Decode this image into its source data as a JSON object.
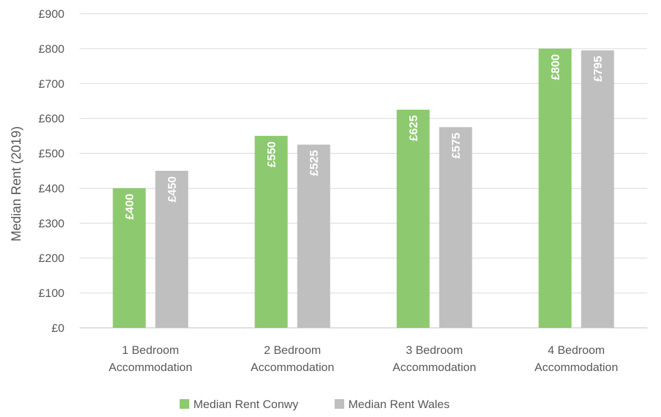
{
  "chart_data": {
    "type": "bar",
    "title": "",
    "xlabel": "",
    "ylabel": "Median Rent (2019)",
    "ylim": [
      0,
      900
    ],
    "y_ticks": [
      "£0",
      "£100",
      "£200",
      "£300",
      "£400",
      "£500",
      "£600",
      "£700",
      "£800",
      "£900"
    ],
    "categories": [
      [
        "1 Bedroom",
        "Accommodation"
      ],
      [
        "2 Bedroom",
        "Accommodation"
      ],
      [
        "3 Bedroom",
        "Accommodation"
      ],
      [
        "4 Bedroom",
        "Accommodation"
      ]
    ],
    "series": [
      {
        "name": "Median Rent Conwy",
        "color": "#8dc96e",
        "values": [
          400,
          550,
          625,
          800
        ],
        "labels": [
          "£400",
          "£550",
          "£625",
          "£800"
        ]
      },
      {
        "name": "Median Rent Wales",
        "color": "#bfbfbf",
        "values": [
          450,
          525,
          575,
          795
        ],
        "labels": [
          "£450",
          "£525",
          "£575",
          "£795"
        ]
      }
    ],
    "grid": true,
    "legend_position": "bottom"
  }
}
